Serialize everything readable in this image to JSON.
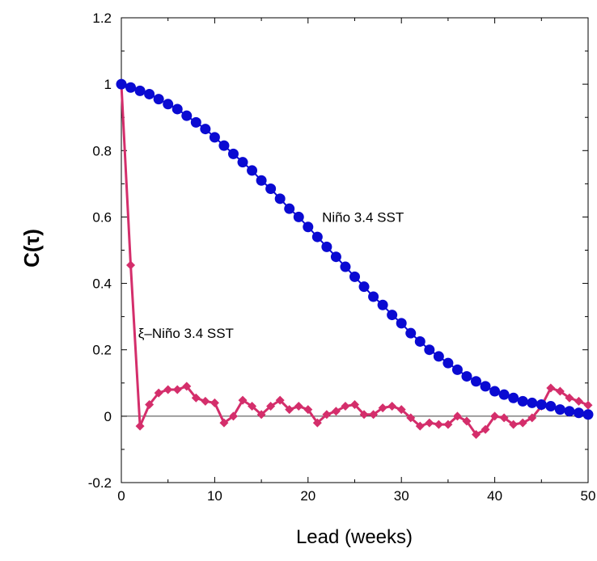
{
  "chart_data": {
    "type": "line",
    "title": "",
    "xlabel": "Lead (weeks)",
    "ylabel": "C(τ)",
    "xlim": [
      0,
      50
    ],
    "ylim": [
      -0.2,
      1.2
    ],
    "xticks": [
      0,
      10,
      20,
      30,
      40,
      50
    ],
    "yticks": [
      -0.2,
      0,
      0.2,
      0.4,
      0.6,
      0.8,
      1,
      1.2
    ],
    "ytick_labels": [
      "-0.2",
      "0",
      "0.2",
      "0.4",
      "0.6",
      "0.8",
      "1",
      "1.2"
    ],
    "grid": false,
    "zero_line": true,
    "series": [
      {
        "name": "Niño 3.4 SST",
        "color": "#0a0ad2",
        "marker": "circle",
        "x": [
          0,
          1,
          2,
          3,
          4,
          5,
          6,
          7,
          8,
          9,
          10,
          11,
          12,
          13,
          14,
          15,
          16,
          17,
          18,
          19,
          20,
          21,
          22,
          23,
          24,
          25,
          26,
          27,
          28,
          29,
          30,
          31,
          32,
          33,
          34,
          35,
          36,
          37,
          38,
          39,
          40,
          41,
          42,
          43,
          44,
          45,
          46,
          47,
          48,
          49,
          50
        ],
        "y": [
          1.0,
          0.99,
          0.98,
          0.97,
          0.955,
          0.94,
          0.925,
          0.905,
          0.885,
          0.865,
          0.84,
          0.815,
          0.79,
          0.765,
          0.74,
          0.71,
          0.685,
          0.655,
          0.625,
          0.6,
          0.57,
          0.54,
          0.51,
          0.48,
          0.45,
          0.42,
          0.39,
          0.36,
          0.335,
          0.305,
          0.28,
          0.25,
          0.225,
          0.2,
          0.18,
          0.16,
          0.14,
          0.12,
          0.105,
          0.09,
          0.075,
          0.065,
          0.055,
          0.045,
          0.04,
          0.035,
          0.03,
          0.02,
          0.015,
          0.01,
          0.005
        ]
      },
      {
        "name": "ξ–Niño 3.4 SST",
        "color": "#d42e6b",
        "marker": "diamond",
        "x": [
          0,
          1,
          2,
          3,
          4,
          5,
          6,
          7,
          8,
          9,
          10,
          11,
          12,
          13,
          14,
          15,
          16,
          17,
          18,
          19,
          20,
          21,
          22,
          23,
          24,
          25,
          26,
          27,
          28,
          29,
          30,
          31,
          32,
          33,
          34,
          35,
          36,
          37,
          38,
          39,
          40,
          41,
          42,
          43,
          44,
          45,
          46,
          47,
          48,
          49,
          50
        ],
        "y": [
          1.0,
          0.455,
          -0.03,
          0.035,
          0.07,
          0.08,
          0.08,
          0.09,
          0.055,
          0.045,
          0.04,
          -0.02,
          0.0,
          0.048,
          0.03,
          0.005,
          0.03,
          0.048,
          0.02,
          0.03,
          0.02,
          -0.02,
          0.005,
          0.015,
          0.03,
          0.035,
          0.005,
          0.005,
          0.025,
          0.03,
          0.02,
          -0.005,
          -0.03,
          -0.02,
          -0.025,
          -0.025,
          0.0,
          -0.015,
          -0.055,
          -0.04,
          0.0,
          -0.005,
          -0.025,
          -0.02,
          -0.005,
          0.03,
          0.085,
          0.075,
          0.055,
          0.045,
          0.033
        ]
      }
    ],
    "annotations": [
      {
        "text": "Niño 3.4 SST",
        "x": 21.5,
        "y": 0.6
      },
      {
        "text": "ξ–Niño 3.4 SST",
        "x": 1.8,
        "y": 0.25
      }
    ]
  }
}
